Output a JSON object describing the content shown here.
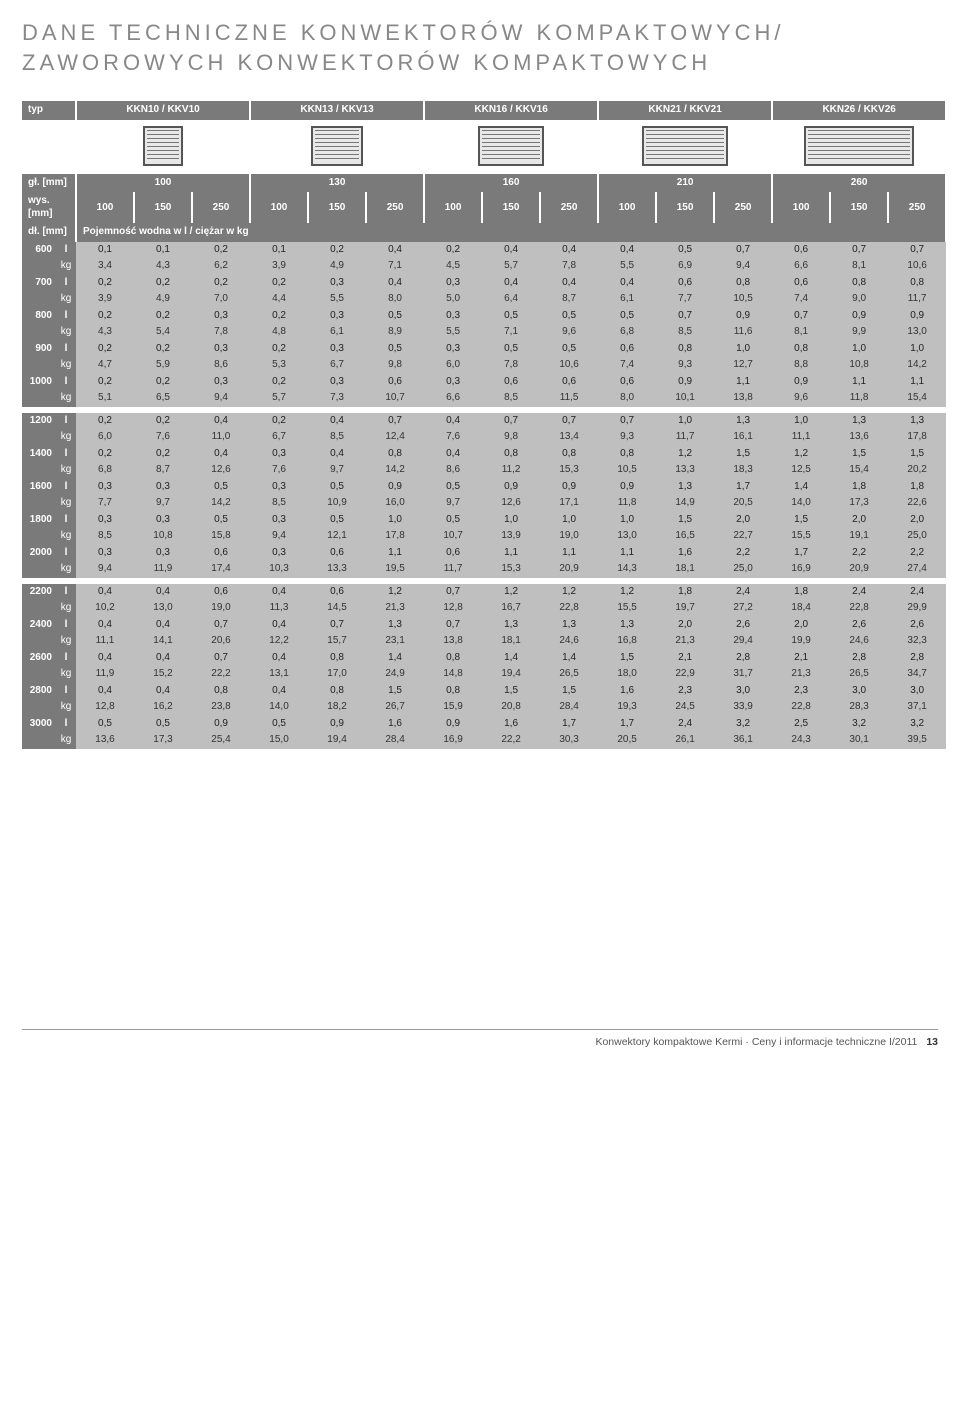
{
  "title_line1": "DANE TECHNICZNE KONWEKTORÓW KOMPAKTOWYCH/",
  "title_line2": "ZAWOROWYCH KONWEKTORÓW KOMPAKTOWYCH",
  "colors": {
    "header_bg": "#7a7a7a",
    "header_fg": "#ffffff",
    "data_bg": "#bfbfbf",
    "data_fg": "#222222",
    "page_bg": "#ffffff",
    "title_fg": "#888888"
  },
  "header": {
    "label_typ": "typ",
    "types": [
      {
        "label": "KKN10 / KKV10",
        "conv_w": 40,
        "conv_h": 40
      },
      {
        "label": "KKN13 / KKV13",
        "conv_w": 52,
        "conv_h": 40
      },
      {
        "label": "KKN16 / KKV16",
        "conv_w": 66,
        "conv_h": 40
      },
      {
        "label": "KKN21 / KKV21",
        "conv_w": 86,
        "conv_h": 40
      },
      {
        "label": "KKN26 / KKV26",
        "conv_w": 110,
        "conv_h": 40
      }
    ],
    "depth_label": "gł. [mm]",
    "depths": [
      "100",
      "130",
      "160",
      "210",
      "260"
    ],
    "height_label": "wys. [mm]",
    "heights": [
      "100",
      "150",
      "250",
      "100",
      "150",
      "250",
      "100",
      "150",
      "250",
      "100",
      "150",
      "250",
      "100",
      "150",
      "250"
    ],
    "length_label": "dł. [mm]",
    "capacity_label": "Pojemność wodna w l / ciężar w kg"
  },
  "row_groups": [
    [
      {
        "len": "600",
        "unit1": "l",
        "unit2": "kg",
        "l": [
          "0,1",
          "0,1",
          "0,2",
          "0,1",
          "0,2",
          "0,4",
          "0,2",
          "0,4",
          "0,4",
          "0,4",
          "0,5",
          "0,7",
          "0,6",
          "0,7",
          "0,7"
        ],
        "kg": [
          "3,4",
          "4,3",
          "6,2",
          "3,9",
          "4,9",
          "7,1",
          "4,5",
          "5,7",
          "7,8",
          "5,5",
          "6,9",
          "9,4",
          "6,6",
          "8,1",
          "10,6"
        ]
      },
      {
        "len": "700",
        "unit1": "l",
        "unit2": "kg",
        "l": [
          "0,2",
          "0,2",
          "0,2",
          "0,2",
          "0,3",
          "0,4",
          "0,3",
          "0,4",
          "0,4",
          "0,4",
          "0,6",
          "0,8",
          "0,6",
          "0,8",
          "0,8"
        ],
        "kg": [
          "3,9",
          "4,9",
          "7,0",
          "4,4",
          "5,5",
          "8,0",
          "5,0",
          "6,4",
          "8,7",
          "6,1",
          "7,7",
          "10,5",
          "7,4",
          "9,0",
          "11,7"
        ]
      },
      {
        "len": "800",
        "unit1": "l",
        "unit2": "kg",
        "l": [
          "0,2",
          "0,2",
          "0,3",
          "0,2",
          "0,3",
          "0,5",
          "0,3",
          "0,5",
          "0,5",
          "0,5",
          "0,7",
          "0,9",
          "0,7",
          "0,9",
          "0,9"
        ],
        "kg": [
          "4,3",
          "5,4",
          "7,8",
          "4,8",
          "6,1",
          "8,9",
          "5,5",
          "7,1",
          "9,6",
          "6,8",
          "8,5",
          "11,6",
          "8,1",
          "9,9",
          "13,0"
        ]
      },
      {
        "len": "900",
        "unit1": "l",
        "unit2": "kg",
        "l": [
          "0,2",
          "0,2",
          "0,3",
          "0,2",
          "0,3",
          "0,5",
          "0,3",
          "0,5",
          "0,5",
          "0,6",
          "0,8",
          "1,0",
          "0,8",
          "1,0",
          "1,0"
        ],
        "kg": [
          "4,7",
          "5,9",
          "8,6",
          "5,3",
          "6,7",
          "9,8",
          "6,0",
          "7,8",
          "10,6",
          "7,4",
          "9,3",
          "12,7",
          "8,8",
          "10,8",
          "14,2"
        ]
      },
      {
        "len": "1000",
        "unit1": "l",
        "unit2": "kg",
        "l": [
          "0,2",
          "0,2",
          "0,3",
          "0,2",
          "0,3",
          "0,6",
          "0,3",
          "0,6",
          "0,6",
          "0,6",
          "0,9",
          "1,1",
          "0,9",
          "1,1",
          "1,1"
        ],
        "kg": [
          "5,1",
          "6,5",
          "9,4",
          "5,7",
          "7,3",
          "10,7",
          "6,6",
          "8,5",
          "11,5",
          "8,0",
          "10,1",
          "13,8",
          "9,6",
          "11,8",
          "15,4"
        ]
      }
    ],
    [
      {
        "len": "1200",
        "unit1": "l",
        "unit2": "kg",
        "l": [
          "0,2",
          "0,2",
          "0,4",
          "0,2",
          "0,4",
          "0,7",
          "0,4",
          "0,7",
          "0,7",
          "0,7",
          "1,0",
          "1,3",
          "1,0",
          "1,3",
          "1,3"
        ],
        "kg": [
          "6,0",
          "7,6",
          "11,0",
          "6,7",
          "8,5",
          "12,4",
          "7,6",
          "9,8",
          "13,4",
          "9,3",
          "11,7",
          "16,1",
          "11,1",
          "13,6",
          "17,8"
        ]
      },
      {
        "len": "1400",
        "unit1": "l",
        "unit2": "kg",
        "l": [
          "0,2",
          "0,2",
          "0,4",
          "0,3",
          "0,4",
          "0,8",
          "0,4",
          "0,8",
          "0,8",
          "0,8",
          "1,2",
          "1,5",
          "1,2",
          "1,5",
          "1,5"
        ],
        "kg": [
          "6,8",
          "8,7",
          "12,6",
          "7,6",
          "9,7",
          "14,2",
          "8,6",
          "11,2",
          "15,3",
          "10,5",
          "13,3",
          "18,3",
          "12,5",
          "15,4",
          "20,2"
        ]
      },
      {
        "len": "1600",
        "unit1": "l",
        "unit2": "kg",
        "l": [
          "0,3",
          "0,3",
          "0,5",
          "0,3",
          "0,5",
          "0,9",
          "0,5",
          "0,9",
          "0,9",
          "0,9",
          "1,3",
          "1,7",
          "1,4",
          "1,8",
          "1,8"
        ],
        "kg": [
          "7,7",
          "9,7",
          "14,2",
          "8,5",
          "10,9",
          "16,0",
          "9,7",
          "12,6",
          "17,1",
          "11,8",
          "14,9",
          "20,5",
          "14,0",
          "17,3",
          "22,6"
        ]
      },
      {
        "len": "1800",
        "unit1": "l",
        "unit2": "kg",
        "l": [
          "0,3",
          "0,3",
          "0,5",
          "0,3",
          "0,5",
          "1,0",
          "0,5",
          "1,0",
          "1,0",
          "1,0",
          "1,5",
          "2,0",
          "1,5",
          "2,0",
          "2,0"
        ],
        "kg": [
          "8,5",
          "10,8",
          "15,8",
          "9,4",
          "12,1",
          "17,8",
          "10,7",
          "13,9",
          "19,0",
          "13,0",
          "16,5",
          "22,7",
          "15,5",
          "19,1",
          "25,0"
        ]
      },
      {
        "len": "2000",
        "unit1": "l",
        "unit2": "kg",
        "l": [
          "0,3",
          "0,3",
          "0,6",
          "0,3",
          "0,6",
          "1,1",
          "0,6",
          "1,1",
          "1,1",
          "1,1",
          "1,6",
          "2,2",
          "1,7",
          "2,2",
          "2,2"
        ],
        "kg": [
          "9,4",
          "11,9",
          "17,4",
          "10,3",
          "13,3",
          "19,5",
          "11,7",
          "15,3",
          "20,9",
          "14,3",
          "18,1",
          "25,0",
          "16,9",
          "20,9",
          "27,4"
        ]
      }
    ],
    [
      {
        "len": "2200",
        "unit1": "l",
        "unit2": "kg",
        "l": [
          "0,4",
          "0,4",
          "0,6",
          "0,4",
          "0,6",
          "1,2",
          "0,7",
          "1,2",
          "1,2",
          "1,2",
          "1,8",
          "2,4",
          "1,8",
          "2,4",
          "2,4"
        ],
        "kg": [
          "10,2",
          "13,0",
          "19,0",
          "11,3",
          "14,5",
          "21,3",
          "12,8",
          "16,7",
          "22,8",
          "15,5",
          "19,7",
          "27,2",
          "18,4",
          "22,8",
          "29,9"
        ]
      },
      {
        "len": "2400",
        "unit1": "l",
        "unit2": "kg",
        "l": [
          "0,4",
          "0,4",
          "0,7",
          "0,4",
          "0,7",
          "1,3",
          "0,7",
          "1,3",
          "1,3",
          "1,3",
          "2,0",
          "2,6",
          "2,0",
          "2,6",
          "2,6"
        ],
        "kg": [
          "11,1",
          "14,1",
          "20,6",
          "12,2",
          "15,7",
          "23,1",
          "13,8",
          "18,1",
          "24,6",
          "16,8",
          "21,3",
          "29,4",
          "19,9",
          "24,6",
          "32,3"
        ]
      },
      {
        "len": "2600",
        "unit1": "l",
        "unit2": "kg",
        "l": [
          "0,4",
          "0,4",
          "0,7",
          "0,4",
          "0,8",
          "1,4",
          "0,8",
          "1,4",
          "1,4",
          "1,5",
          "2,1",
          "2,8",
          "2,1",
          "2,8",
          "2,8"
        ],
        "kg": [
          "11,9",
          "15,2",
          "22,2",
          "13,1",
          "17,0",
          "24,9",
          "14,8",
          "19,4",
          "26,5",
          "18,0",
          "22,9",
          "31,7",
          "21,3",
          "26,5",
          "34,7"
        ]
      },
      {
        "len": "2800",
        "unit1": "l",
        "unit2": "kg",
        "l": [
          "0,4",
          "0,4",
          "0,8",
          "0,4",
          "0,8",
          "1,5",
          "0,8",
          "1,5",
          "1,5",
          "1,6",
          "2,3",
          "3,0",
          "2,3",
          "3,0",
          "3,0"
        ],
        "kg": [
          "12,8",
          "16,2",
          "23,8",
          "14,0",
          "18,2",
          "26,7",
          "15,9",
          "20,8",
          "28,4",
          "19,3",
          "24,5",
          "33,9",
          "22,8",
          "28,3",
          "37,1"
        ]
      },
      {
        "len": "3000",
        "unit1": "l",
        "unit2": "kg",
        "l": [
          "0,5",
          "0,5",
          "0,9",
          "0,5",
          "0,9",
          "1,6",
          "0,9",
          "1,6",
          "1,7",
          "1,7",
          "2,4",
          "3,2",
          "2,5",
          "3,2",
          "3,2"
        ],
        "kg": [
          "13,6",
          "17,3",
          "25,4",
          "15,0",
          "19,4",
          "28,4",
          "16,9",
          "22,2",
          "30,3",
          "20,5",
          "26,1",
          "36,1",
          "24,3",
          "30,1",
          "39,5"
        ]
      }
    ]
  ],
  "footer": {
    "text": "Konwektory kompaktowe Kermi · Ceny i informacje techniczne I/2011",
    "page": "13"
  }
}
